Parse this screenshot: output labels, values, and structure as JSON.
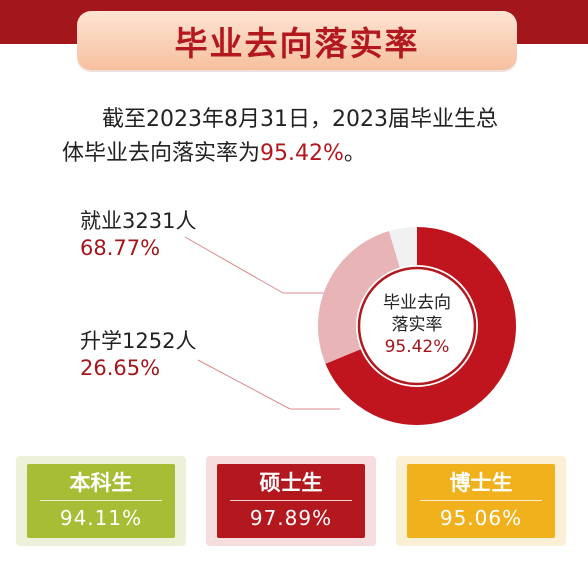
{
  "header": {
    "title": "毕业去向落实率"
  },
  "intro": {
    "line1": "截至2023年8月31日，2023届毕业生总",
    "line2_prefix": "体毕业去向落实率为",
    "line2_value": "95.42%",
    "line2_suffix": "。"
  },
  "colors": {
    "brand_red": "#a3161b",
    "employment": "#c0151e",
    "study": "#e8b4b6",
    "bachelor": "#a7bd35",
    "master": "#b3181e",
    "doctor": "#f0b11d"
  },
  "chart_data": {
    "type": "pie",
    "variant": "donut",
    "center_label": "毕业去向落实率",
    "center_label_lines": [
      "毕业去向",
      "落实率"
    ],
    "center_value": "95.42%",
    "slices": [
      {
        "label": "就业3231人",
        "value": 68.77,
        "value_text": "68.77%"
      },
      {
        "label": "升学1252人",
        "value": 26.65,
        "value_text": "26.65%"
      }
    ],
    "unfilled": 4.58
  },
  "degrees": [
    {
      "name": "本科生",
      "value": "94.11%"
    },
    {
      "name": "硕士生",
      "value": "97.89%"
    },
    {
      "name": "博士生",
      "value": "95.06%"
    }
  ]
}
